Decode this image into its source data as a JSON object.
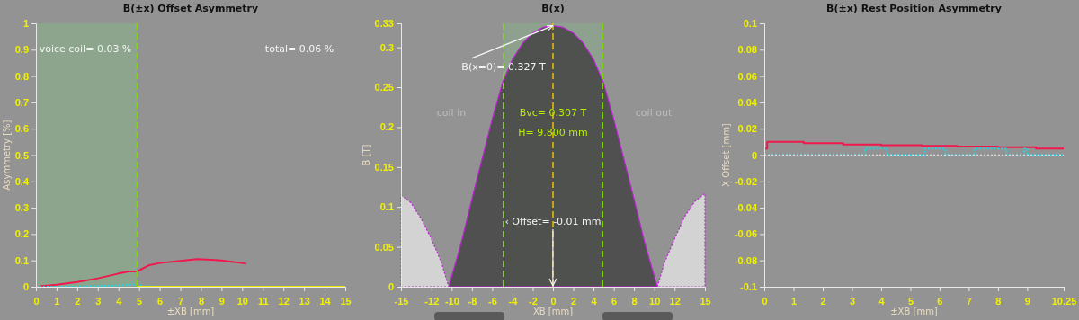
{
  "chart_data": [
    {
      "type": "line",
      "title": "B(±x) Offset Asymmetry",
      "xlabel": "±XB [mm]",
      "ylabel": "Asymmetry [%]",
      "xlim": [
        0,
        15
      ],
      "xticks": [
        0,
        1,
        2,
        3,
        4,
        5,
        6,
        7,
        8,
        9,
        10,
        11,
        12,
        13,
        14,
        15
      ],
      "ylim": [
        0,
        1
      ],
      "yticks": [
        0,
        0.1,
        0.2,
        0.3,
        0.4,
        0.5,
        0.6,
        0.7,
        0.8,
        0.9,
        1
      ],
      "grid": false,
      "series": [
        {
          "color": "#f0184c",
          "x": [
            0.2,
            1,
            2,
            3,
            4,
            4.5,
            4.9,
            5.5,
            6,
            7,
            7.8,
            8.5,
            9,
            9.5,
            10,
            10.2
          ],
          "values": [
            0.002,
            0.008,
            0.018,
            0.032,
            0.05,
            0.058,
            0.058,
            0.082,
            0.09,
            0.098,
            0.105,
            0.102,
            0.1,
            0.095,
            0.09,
            0.087
          ]
        },
        {
          "color": "#22d3e6",
          "line_style": "dotted",
          "x": [
            0,
            1,
            2,
            3,
            4,
            4.9,
            5.2,
            6
          ],
          "values": [
            0,
            0,
            0.001,
            0.003,
            0.005,
            0.01,
            0.002,
            0
          ]
        },
        {
          "color": "#e6e600",
          "x": [
            4.9,
            15
          ],
          "values": [
            0,
            0
          ]
        }
      ],
      "bands": [
        {
          "axis": "x",
          "from": 0,
          "to": 4.9,
          "color": "#8aab8a"
        }
      ],
      "ref_lines": [
        {
          "axis": "x",
          "value": 4.9,
          "color": "#7fdb00",
          "line_style": "dashed"
        }
      ],
      "annotations": [
        "voice coil= 0.03 %",
        "total= 0.06 %"
      ]
    },
    {
      "type": "area",
      "title": "B(x)",
      "xlabel": "XB [mm]",
      "ylabel": "B [T]",
      "xlim": [
        -15,
        15
      ],
      "xticks": [
        -15,
        -12,
        -10,
        -8,
        -6,
        -4,
        -2,
        0,
        2,
        4,
        6,
        8,
        10,
        12,
        15
      ],
      "ylim": [
        0,
        0.33
      ],
      "yticks": [
        0,
        0.05,
        0.1,
        0.15,
        0.2,
        0.25,
        0.3,
        0.33
      ],
      "grid": false,
      "series": [
        {
          "color": "#4a4a4a",
          "x": [
            -10.3,
            -9.5,
            -9,
            -8,
            -7,
            -6,
            -5,
            -4,
            -3,
            -2,
            -1,
            0,
            1,
            2,
            3,
            4,
            5,
            6,
            7,
            8,
            9,
            9.5,
            10.3
          ],
          "values": [
            0,
            0.035,
            0.058,
            0.11,
            0.16,
            0.21,
            0.255,
            0.285,
            0.305,
            0.318,
            0.325,
            0.327,
            0.325,
            0.318,
            0.305,
            0.285,
            0.255,
            0.21,
            0.16,
            0.11,
            0.058,
            0.035,
            0
          ]
        },
        {
          "color": "#d8d8d8",
          "line_style": "dotted",
          "x": [
            -15,
            -14,
            -13,
            -12,
            -11,
            -10.3
          ],
          "values": [
            0.115,
            0.105,
            0.085,
            0.06,
            0.03,
            0
          ]
        },
        {
          "color": "#d8d8d8",
          "line_style": "dotted",
          "x": [
            10.3,
            11,
            12,
            13,
            14,
            15
          ],
          "values": [
            0,
            0.03,
            0.06,
            0.088,
            0.107,
            0.117
          ]
        }
      ],
      "bands": [
        {
          "axis": "x",
          "from": -4.9,
          "to": 4.9,
          "color": "#8aab8a"
        }
      ],
      "ref_lines": [
        {
          "axis": "x",
          "value": -4.9,
          "color": "#7fdb00",
          "line_style": "dashed"
        },
        {
          "axis": "x",
          "value": 4.9,
          "color": "#7fdb00",
          "line_style": "dashed"
        },
        {
          "axis": "x",
          "value": 0,
          "color": "#f0c000",
          "line_style": "dashed"
        }
      ],
      "annotations": [
        {
          "text": "B(x=0)= 0.327 T",
          "x": 0,
          "y": 0.327
        },
        "coil in",
        "coil out",
        "Bvc= 0.307 T",
        "H= 9.800 mm",
        {
          "text": "‹ Offset= -0.01 mm",
          "x": -0.01,
          "y": 0
        }
      ]
    },
    {
      "type": "step",
      "title": "B(±x) Rest Position Asymmetry",
      "xlabel": "±XB [mm]",
      "ylabel": "X Offset [mm]",
      "xlim": [
        0,
        10.25
      ],
      "xticks": [
        0,
        1,
        2,
        3,
        4,
        5,
        6,
        7,
        8,
        9,
        10.25
      ],
      "ylim": [
        -0.1,
        0.1
      ],
      "yticks": [
        -0.1,
        -0.08,
        -0.06,
        -0.04,
        -0.02,
        0,
        0.02,
        0.04,
        0.06,
        0.08,
        0.1
      ],
      "grid": false,
      "series": [
        {
          "color": "#f0184c",
          "x": [
            0,
            0.1,
            1.35,
            2.7,
            4,
            5.4,
            6.6,
            8,
            9.3,
            10.25
          ],
          "values": [
            0.005,
            0.01,
            0.009,
            0.008,
            0.0075,
            0.007,
            0.0065,
            0.006,
            0.005,
            0.005
          ]
        },
        {
          "color": "#22d3e6",
          "line_style": "dotted",
          "x": [
            0,
            3.45,
            4.2,
            5.5,
            6.2,
            7.2,
            8.3,
            8.9,
            9,
            10.25
          ],
          "values": [
            0,
            0.005,
            0,
            0.005,
            0,
            0.005,
            0,
            0.005,
            0,
            0
          ]
        }
      ],
      "ref_lines": [
        {
          "axis": "y",
          "value": 0,
          "color": "#e0e0e0",
          "line_style": "dotted"
        }
      ]
    }
  ]
}
